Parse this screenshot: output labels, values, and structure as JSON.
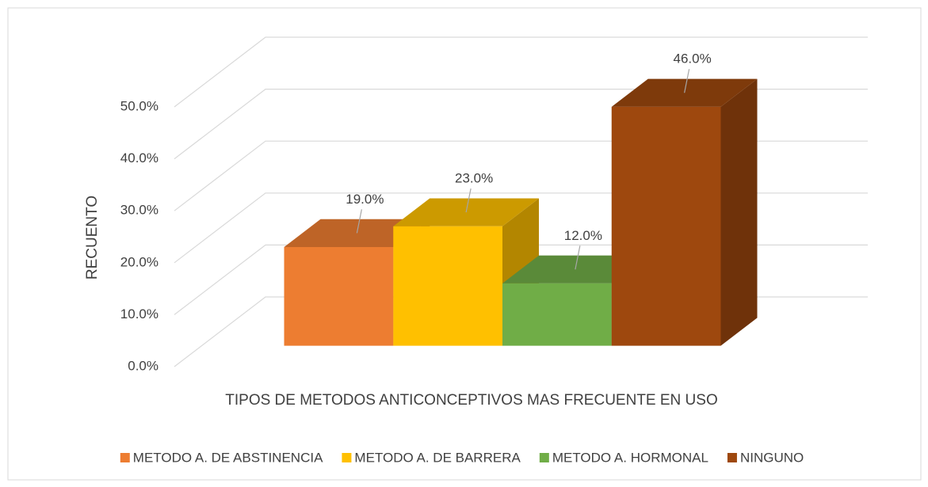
{
  "chart_data": {
    "type": "bar3d",
    "x_label": "TIPOS DE METODOS  ANTICONCEPTIVOS MAS FRECUENTE EN USO",
    "y_label": "RECUENTO",
    "series": [
      {
        "name": "METODO A. DE ABSTINENCIA",
        "color": "#ed7d31",
        "values": [
          19
        ],
        "value_labels": [
          "19.0%"
        ]
      },
      {
        "name": "METODO A. DE BARRERA",
        "color": "#ffc000",
        "values": [
          23
        ],
        "value_labels": [
          "23.0%"
        ]
      },
      {
        "name": "METODO A. HORMONAL",
        "color": "#70ad47",
        "values": [
          12
        ],
        "value_labels": [
          "12.0%"
        ]
      },
      {
        "name": "NINGUNO",
        "color": "#9e480e",
        "values": [
          46
        ],
        "value_labels": [
          "46.0%"
        ]
      }
    ],
    "ylim": [
      0,
      50
    ],
    "yticks": [
      {
        "value": 0,
        "label": "0.0%"
      },
      {
        "value": 10,
        "label": "10.0%"
      },
      {
        "value": 20,
        "label": "20.0%"
      },
      {
        "value": 30,
        "label": "30.0%"
      },
      {
        "value": 40,
        "label": "40.0%"
      },
      {
        "value": 50,
        "label": "50.0%"
      }
    ],
    "grid": true,
    "legend": "bottom"
  }
}
